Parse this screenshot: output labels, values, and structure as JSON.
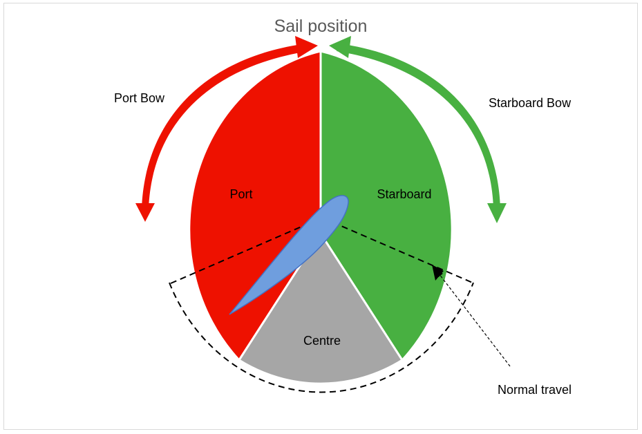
{
  "title": "Sail position",
  "labels": {
    "port_bow": "Port Bow",
    "starboard_bow": "Starboard Bow",
    "port": "Port",
    "starboard": "Starboard",
    "centre": "Centre",
    "normal_travel": "Normal travel"
  },
  "colors": {
    "port": "#ee1100",
    "starboard": "#48b041",
    "centre": "#a6a6a6",
    "sail_fill": "#6f9ede",
    "sail_stroke": "#4472c4",
    "port_arrow": "#ee1100",
    "starboard_arrow": "#48b041"
  }
}
